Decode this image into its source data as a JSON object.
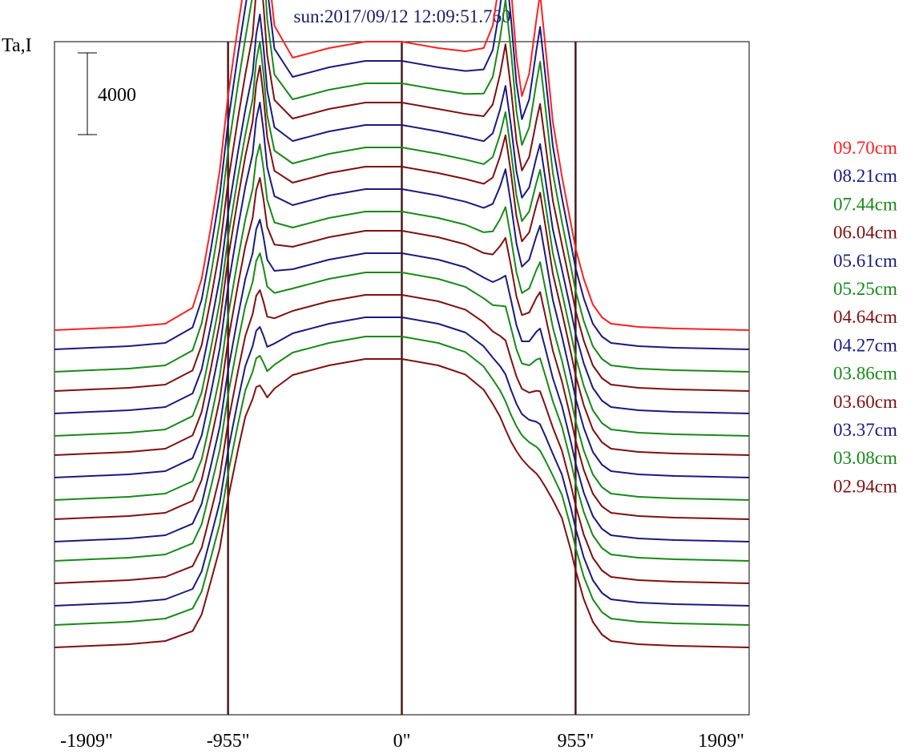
{
  "chart_data": {
    "type": "line",
    "title": "sun:2017/09/12 12:09:51.760",
    "ylabel": "Ta,I",
    "scale_bar": "4000",
    "x_ticks": [
      "-1909\"",
      "-955\"",
      "0\"",
      "955\"",
      "1909\""
    ],
    "x_tick_values": [
      -1909,
      -955,
      0,
      955,
      1909
    ],
    "xlim": [
      -1909,
      1909
    ],
    "vertical_lines_at": [
      -955,
      0,
      955
    ],
    "colors": {
      "red": "#ff2020",
      "navy": "#1a1a80",
      "green": "#178a17",
      "maroon": "#800f0f",
      "axis": "#000000",
      "marker": "#4a1a1a"
    },
    "legend_placement": "right",
    "legend": [
      {
        "label": "09.70cm",
        "color": "#ff2020"
      },
      {
        "label": "08.21cm",
        "color": "#1a1a80"
      },
      {
        "label": "07.44cm",
        "color": "#178a17"
      },
      {
        "label": "06.04cm",
        "color": "#800f0f"
      },
      {
        "label": "05.61cm",
        "color": "#1a1a80"
      },
      {
        "label": "05.25cm",
        "color": "#178a17"
      },
      {
        "label": "04.64cm",
        "color": "#800f0f"
      },
      {
        "label": "04.27cm",
        "color": "#1a1a80"
      },
      {
        "label": "03.86cm",
        "color": "#178a17"
      },
      {
        "label": "03.60cm",
        "color": "#800f0f"
      },
      {
        "label": "03.37cm",
        "color": "#1a1a80"
      },
      {
        "label": "03.08cm",
        "color": "#178a17"
      },
      {
        "label": "02.94cm",
        "color": "#800f0f"
      }
    ],
    "series_colors": [
      "#ff2020",
      "#1a1a80",
      "#178a17",
      "#800f0f",
      "#1a1a80",
      "#178a17",
      "#800f0f",
      "#1a1a80",
      "#178a17",
      "#800f0f",
      "#1a1a80",
      "#178a17",
      "#800f0f",
      "#1a1a80",
      "#178a17",
      "#800f0f"
    ],
    "baselines": [
      16000,
      15400,
      14700,
      14100,
      13400,
      12700,
      12100,
      11400,
      10700,
      10100,
      9400,
      8800,
      8100,
      7400,
      6800,
      6100
    ],
    "ylim": [
      4000,
      25000
    ],
    "x_points": [
      -1909,
      -1500,
      -1300,
      -1150,
      -1100,
      -1050,
      -1000,
      -955,
      -900,
      -860,
      -820,
      -800,
      -780,
      -760,
      -740,
      -700,
      -600,
      -400,
      -200,
      0,
      200,
      350,
      450,
      500,
      540,
      570,
      600,
      630,
      660,
      700,
      740,
      760,
      790,
      830,
      880,
      930,
      955,
      1000,
      1050,
      1100,
      1150,
      1300,
      1500,
      1909
    ],
    "profile_units": {
      "edge": [
        0,
        100,
        200,
        500,
        1000,
        2000,
        3000,
        4500,
        6000,
        7000,
        7500,
        7800,
        7800,
        7700,
        7600,
        8000,
        8500,
        8800,
        9000,
        9000,
        8800,
        8500,
        8000,
        7500,
        7000,
        6500,
        6200,
        6000,
        5800,
        5500,
        5200,
        5000,
        4800,
        4500,
        4000,
        3000,
        2400,
        1500,
        800,
        400,
        200,
        100,
        50,
        0
      ],
      "limb": [
        0,
        0,
        0,
        200,
        600,
        1200,
        2000,
        2800,
        3500,
        4000,
        5000,
        6500,
        7500,
        6000,
        4000,
        1500,
        0,
        0,
        0,
        0,
        0,
        200,
        800,
        2000,
        4000,
        6000,
        4500,
        2500,
        1500,
        2500,
        4500,
        5500,
        4000,
        2000,
        800,
        300,
        150,
        100,
        0,
        0,
        0,
        0,
        0,
        0
      ]
    },
    "limb_scale": [
      1.0,
      0.92,
      0.85,
      0.72,
      0.62,
      0.6,
      0.58,
      0.52,
      0.44,
      0.38,
      0.3,
      0.24,
      0.18,
      0.12,
      0.08,
      0.05
    ]
  }
}
